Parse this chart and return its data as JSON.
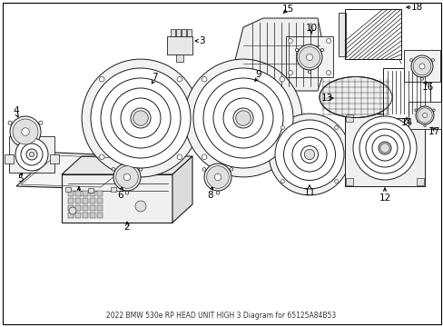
{
  "title": "2022 BMW 530e RP HEAD UNIT HIGH 3 Diagram for 65125A84B53",
  "background_color": "#ffffff",
  "fig_width": 4.89,
  "fig_height": 3.6,
  "dpi": 100
}
